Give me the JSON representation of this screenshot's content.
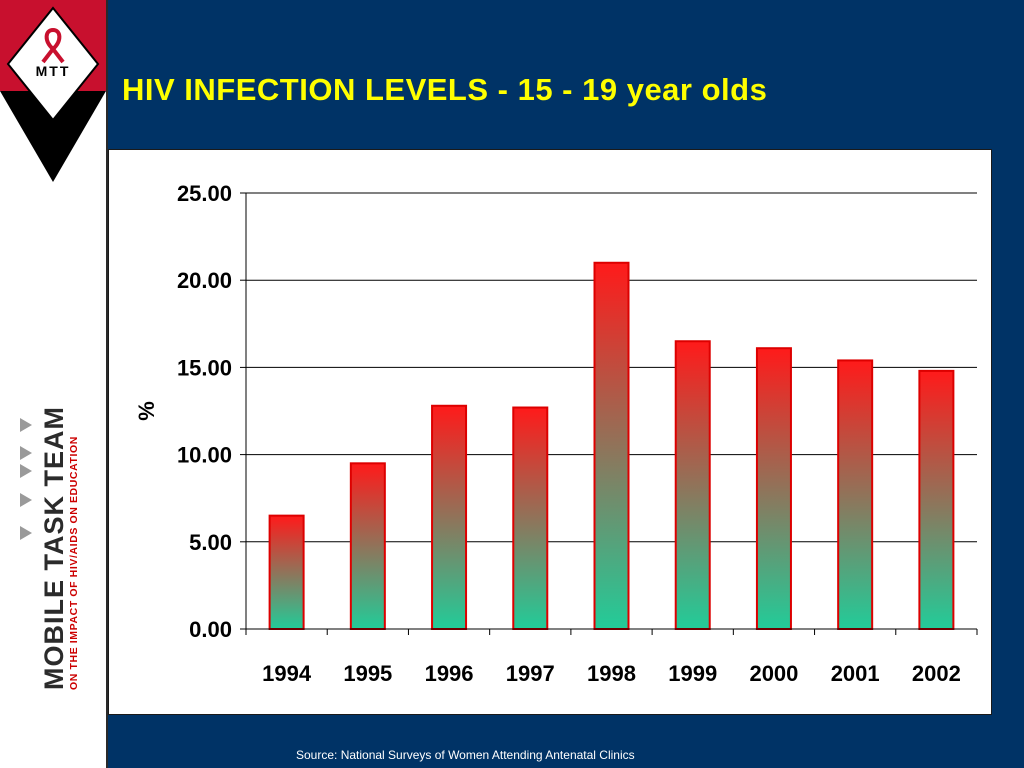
{
  "slide": {
    "title": "HIV INFECTION LEVELS - 15 - 19 year olds",
    "source": "Source: National Surveys of Women Attending Antenatal Clinics"
  },
  "branding": {
    "logo_text": "MTT",
    "name": "MOBILE TASK TEAM",
    "tagline": "ON THE IMPACT OF HIV/AIDS ON EDUCATION"
  },
  "colors": {
    "background": "#003366",
    "title": "#ffff00",
    "bar_top": "#ff1a1a",
    "bar_bottom": "#22cc99",
    "bar_border": "#dd0000",
    "logo_red": "#c8102e"
  },
  "chart_data": {
    "type": "bar",
    "categories": [
      "1994",
      "1995",
      "1996",
      "1997",
      "1998",
      "1999",
      "2000",
      "2001",
      "2002"
    ],
    "values": [
      6.5,
      9.5,
      12.8,
      12.7,
      21.0,
      16.5,
      16.1,
      15.4,
      14.8
    ],
    "title": "",
    "xlabel": "",
    "ylabel": "%",
    "ylim": [
      0,
      25
    ],
    "yticks": [
      "0.00",
      "5.00",
      "10.00",
      "15.00",
      "20.00",
      "25.00"
    ],
    "grid": true,
    "legend": "none"
  }
}
